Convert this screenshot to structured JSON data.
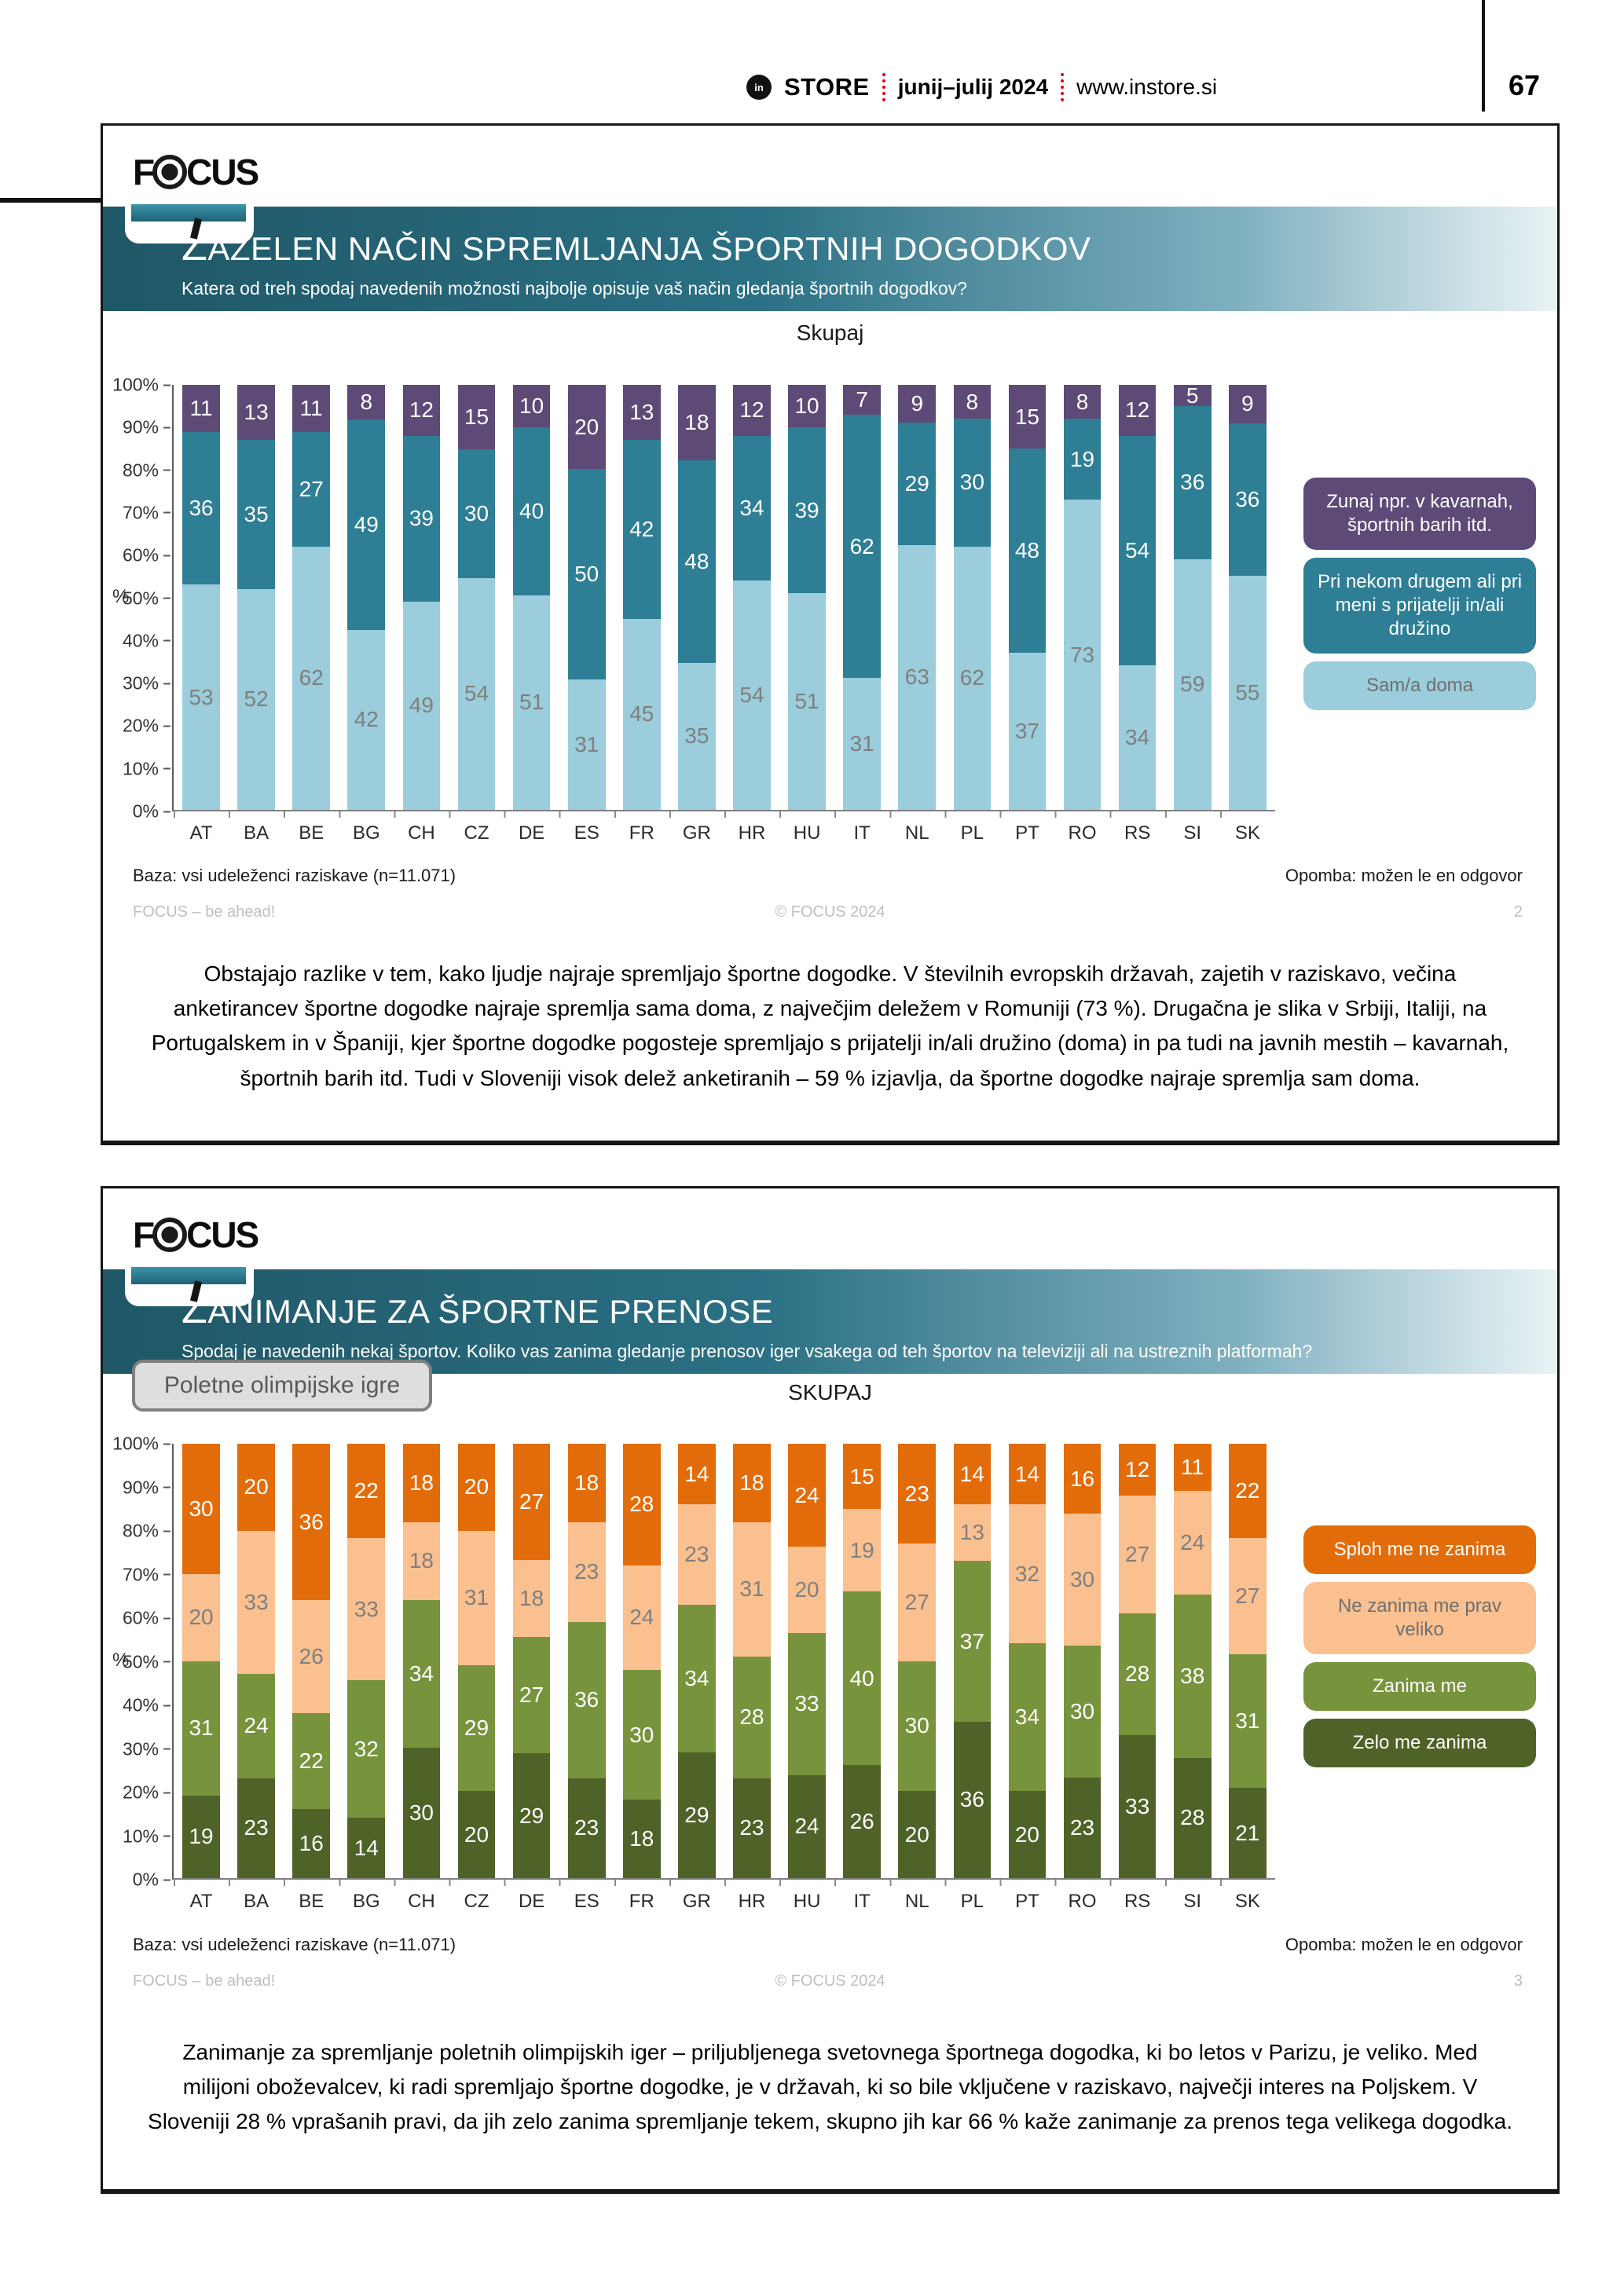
{
  "page": {
    "header": {
      "brand_icon": "in",
      "brand": "STORE",
      "issue": "junij–julij 2024",
      "website": "www.instore.si",
      "page_number": "67"
    }
  },
  "panels": [
    {
      "logo_left": "F",
      "logo_right": "CUS",
      "title": "ZAŽELEN NAČIN SPREMLJANJA ŠPORTNIH DOGODKOV",
      "subtitle": "Katera od treh spodaj navedenih možnosti najbolje opisuje vaš način gledanja športnih dogodkov?",
      "chart_title": "Skupaj",
      "base_note": "Baza: vsi udeleženci raziskave (n=11.071)",
      "note": "Opomba: možen le en odgovor",
      "footer_left": "FOCUS – be ahead!",
      "footer_center": "© FOCUS 2024",
      "slide_number": "2",
      "paragraph": "Obstajajo razlike v tem, kako ljudje najraje spremljajo športne dogodke. V številnih evropskih državah, zajetih v raziskavo, večina anketirancev športne dogodke najraje spremlja sama doma, z največjim deležem v Romuniji (73 %). Drugačna je slika v Srbiji, Italiji, na Portugalskem in v Španiji, kjer športne dogodke pogosteje spremljajo s prijatelji in/ali družino (doma) in pa tudi na javnih mestih – kavarnah, športnih barih itd. Tudi v Sloveniji visok delež anketiranih – 59 % izjavlja, da športne dogodke najraje spremlja sam doma."
    },
    {
      "logo_left": "F",
      "logo_right": "CUS",
      "title": "ZANIMANJE ZA ŠPORTNE PRENOSE",
      "subtitle": "Spodaj je navedenih nekaj športov. Koliko vas zanima gledanje prenosov iger vsakega od teh športov na televiziji ali na ustreznih platformah?",
      "filter_button": "Poletne olimpijske igre",
      "chart_title": "SKUPAJ",
      "base_note": "Baza: vsi udeleženci raziskave (n=11.071)",
      "note": "Opomba: možen le en odgovor",
      "footer_left": "FOCUS – be ahead!",
      "footer_center": "© FOCUS 2024",
      "slide_number": "3",
      "paragraph": "Zanimanje za spremljanje poletnih olimpijskih iger – priljubljenega svetovnega športnega dogodka, ki bo letos v Parizu, je veliko. Med milijoni oboževalcev, ki radi spremljajo športne dogodke, je v državah, ki so bile vključene v raziskavo, največji interes na Poljskem. V Sloveniji 28 % vprašanih pravi, da jih zelo zanima spremljanje tekem, skupno jih kar 66 % kaže zanimanje za prenos tega velikega dogodka."
    }
  ],
  "chart_data": [
    {
      "type": "bar",
      "stacked": true,
      "title": "Skupaj",
      "xlabel": "",
      "ylabel": "%",
      "ylim": [
        0,
        100
      ],
      "yticks": [
        "0%",
        "10%",
        "20%",
        "30%",
        "40%",
        "50%",
        "60%",
        "70%",
        "80%",
        "90%",
        "100%"
      ],
      "grid": false,
      "legend_position": "right",
      "categories": [
        "AT",
        "BA",
        "BE",
        "BG",
        "CH",
        "CZ",
        "DE",
        "ES",
        "FR",
        "GR",
        "HR",
        "HU",
        "IT",
        "NL",
        "PL",
        "PT",
        "RO",
        "RS",
        "SI",
        "SK"
      ],
      "series": [
        {
          "name": "Sam/a doma",
          "color": "#9bcdDC",
          "label_color": "#7f7f7f",
          "values": [
            53,
            52,
            62,
            42,
            49,
            54,
            51,
            31,
            45,
            35,
            54,
            51,
            31,
            63,
            62,
            37,
            73,
            34,
            59,
            55
          ]
        },
        {
          "name": "Pri nekom drugem ali pri meni s prijatelji in/ali družino",
          "color": "#2e7e95",
          "label_color": "#ffffff",
          "values": [
            36,
            35,
            27,
            49,
            39,
            30,
            40,
            50,
            42,
            48,
            34,
            39,
            62,
            29,
            30,
            48,
            19,
            54,
            36,
            36
          ]
        },
        {
          "name": "Zunaj npr. v kavarnah, športnih barih itd.",
          "color": "#5d4a76",
          "label_color": "#ffffff",
          "values": [
            11,
            13,
            11,
            8,
            12,
            15,
            10,
            20,
            13,
            18,
            12,
            10,
            7,
            9,
            8,
            15,
            8,
            12,
            5,
            9
          ]
        }
      ]
    },
    {
      "type": "bar",
      "stacked": true,
      "title": "SKUPAJ",
      "xlabel": "",
      "ylabel": "%",
      "ylim": [
        0,
        100
      ],
      "yticks": [
        "0%",
        "10%",
        "20%",
        "30%",
        "40%",
        "50%",
        "60%",
        "70%",
        "80%",
        "90%",
        "100%"
      ],
      "grid": false,
      "legend_position": "right",
      "categories": [
        "AT",
        "BA",
        "BE",
        "BG",
        "CH",
        "CZ",
        "DE",
        "ES",
        "FR",
        "GR",
        "HR",
        "HU",
        "IT",
        "NL",
        "PL",
        "PT",
        "RO",
        "RS",
        "SI",
        "SK"
      ],
      "series": [
        {
          "name": "Zelo me zanima",
          "color": "#4f6228",
          "label_color": "#ffffff",
          "values": [
            19,
            23,
            16,
            14,
            30,
            20,
            29,
            23,
            18,
            29,
            23,
            24,
            26,
            20,
            36,
            20,
            23,
            33,
            28,
            21
          ]
        },
        {
          "name": "Zanima me",
          "color": "#77933c",
          "label_color": "#ffffff",
          "values": [
            31,
            24,
            22,
            32,
            34,
            29,
            27,
            36,
            30,
            34,
            28,
            33,
            40,
            30,
            37,
            34,
            30,
            28,
            38,
            31
          ]
        },
        {
          "name": "Ne zanima me prav veliko",
          "color": "#fac090",
          "label_color": "#7f7f7f",
          "values": [
            20,
            33,
            26,
            33,
            18,
            31,
            18,
            23,
            24,
            23,
            31,
            20,
            19,
            27,
            13,
            32,
            30,
            27,
            24,
            27
          ]
        },
        {
          "name": "Sploh me ne zanima",
          "color": "#e36c0a",
          "label_color": "#ffffff",
          "values": [
            30,
            20,
            36,
            22,
            18,
            20,
            27,
            18,
            28,
            14,
            18,
            24,
            15,
            23,
            14,
            14,
            16,
            12,
            11,
            22
          ]
        }
      ]
    }
  ]
}
